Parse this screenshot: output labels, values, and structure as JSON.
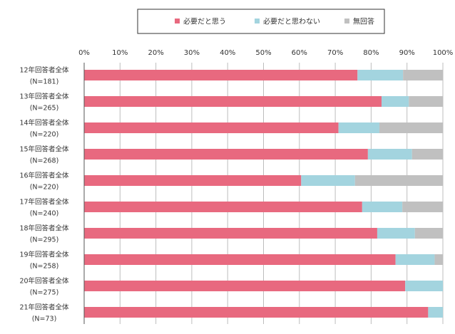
{
  "chart_data": {
    "type": "bar",
    "orientation": "horizontal",
    "stacked": true,
    "percent": true,
    "xlim": [
      0,
      100
    ],
    "x_ticks": [
      "0%",
      "10%",
      "20%",
      "30%",
      "40%",
      "50%",
      "60%",
      "70%",
      "80%",
      "90%",
      "100%"
    ],
    "grid": true,
    "legend_position": "top",
    "categories": [
      [
        "12年回答者全体",
        "(N=181)"
      ],
      [
        "13年回答者全体",
        "(N=265)"
      ],
      [
        "14年回答者全体",
        "(N=220)"
      ],
      [
        "15年回答者全体",
        "(N=268)"
      ],
      [
        "16年回答者全体",
        "(N=220)"
      ],
      [
        "17年回答者全体",
        "(N=240)"
      ],
      [
        "18年回答者全体",
        "(N=295)"
      ],
      [
        "19年回答者全体",
        "(N=258)"
      ],
      [
        "20年回答者全体",
        "(N=275)"
      ],
      [
        "21年回答者全体",
        "(N=73)"
      ]
    ],
    "series": [
      {
        "name": "必要だと思う",
        "color": "#e8697f",
        "values": [
          76.2,
          82.9,
          70.9,
          79.1,
          60.5,
          77.5,
          81.7,
          86.8,
          89.5,
          95.9
        ]
      },
      {
        "name": "必要だと思わない",
        "color": "#a3d4df",
        "values": [
          12.7,
          7.6,
          11.4,
          12.3,
          15.0,
          11.2,
          10.5,
          10.9,
          10.5,
          4.1
        ]
      },
      {
        "name": "無回答",
        "color": "#c0c0c0",
        "values": [
          11.1,
          9.5,
          17.7,
          8.6,
          24.5,
          11.3,
          7.8,
          2.3,
          0.0,
          0.0
        ]
      }
    ]
  }
}
